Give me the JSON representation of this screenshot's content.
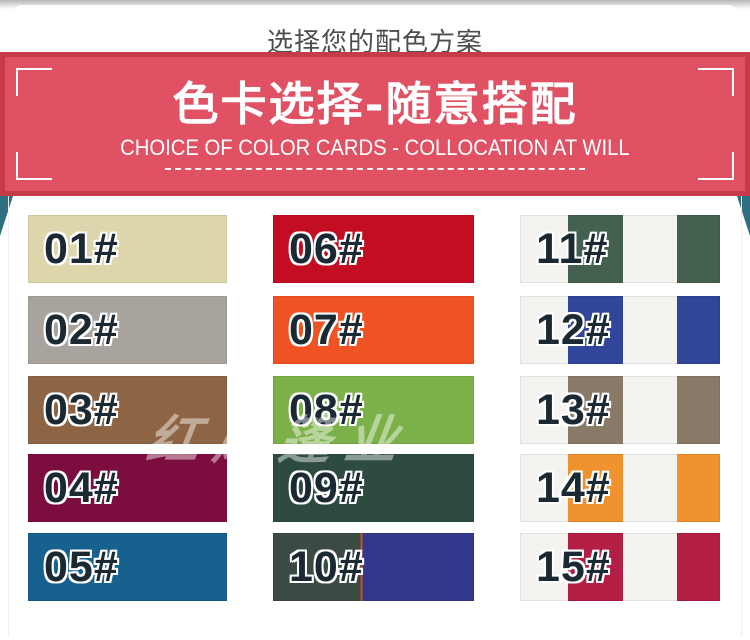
{
  "header": {
    "title": "选择您的配色方案"
  },
  "banner": {
    "title": "色卡选择-随意搭配",
    "subtitle": "CHOICE OF COLOR CARDS - COLLOCATION AT WILL",
    "bg_color": "#e05164",
    "border_color": "#c63a49"
  },
  "decor": {
    "ribbon_color": "#2f6f81",
    "watermark": "红凤篷业"
  },
  "grid": {
    "swatches": [
      {
        "label": "01#",
        "type": "solid",
        "colors": [
          "#ddd5ac"
        ]
      },
      {
        "label": "02#",
        "type": "solid",
        "colors": [
          "#a8a49d"
        ]
      },
      {
        "label": "03#",
        "type": "solid",
        "colors": [
          "#8d6544"
        ]
      },
      {
        "label": "04#",
        "type": "solid",
        "colors": [
          "#7b0e3e"
        ]
      },
      {
        "label": "05#",
        "type": "solid",
        "colors": [
          "#17618f"
        ]
      },
      {
        "label": "06#",
        "type": "solid",
        "colors": [
          "#c30d22"
        ]
      },
      {
        "label": "07#",
        "type": "solid",
        "colors": [
          "#f05323"
        ]
      },
      {
        "label": "08#",
        "type": "solid",
        "colors": [
          "#7cb14a"
        ]
      },
      {
        "label": "09#",
        "type": "solid",
        "colors": [
          "#2d4b41"
        ]
      },
      {
        "label": "10#",
        "type": "split",
        "colors": [
          "#3c4a44",
          "#c0541f",
          "#34388c"
        ]
      },
      {
        "label": "11#",
        "type": "stripes",
        "colors": [
          "#f4f3ef",
          "#44604f"
        ]
      },
      {
        "label": "12#",
        "type": "stripes",
        "colors": [
          "#f4f3ef",
          "#31459a"
        ]
      },
      {
        "label": "13#",
        "type": "stripes",
        "colors": [
          "#f4f3ef",
          "#887a66"
        ]
      },
      {
        "label": "14#",
        "type": "stripes",
        "colors": [
          "#f4f3ef",
          "#f0922e"
        ]
      },
      {
        "label": "15#",
        "type": "stripes",
        "colors": [
          "#f4f3ef",
          "#b31e45"
        ]
      }
    ]
  }
}
